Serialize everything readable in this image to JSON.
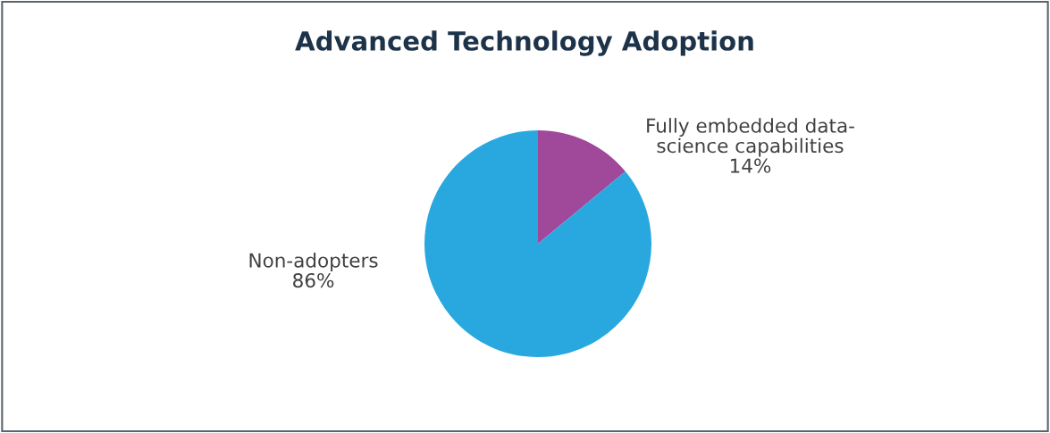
{
  "chart_data": {
    "type": "pie",
    "title": "Advanced Technology Adoption",
    "categories": [
      "Fully embedded data-\nscience capabilities",
      "Non-adopters"
    ],
    "values": [
      14,
      86
    ],
    "colors": [
      "#a0489a",
      "#29a8e0"
    ],
    "value_labels": [
      "14%",
      "86%"
    ]
  }
}
